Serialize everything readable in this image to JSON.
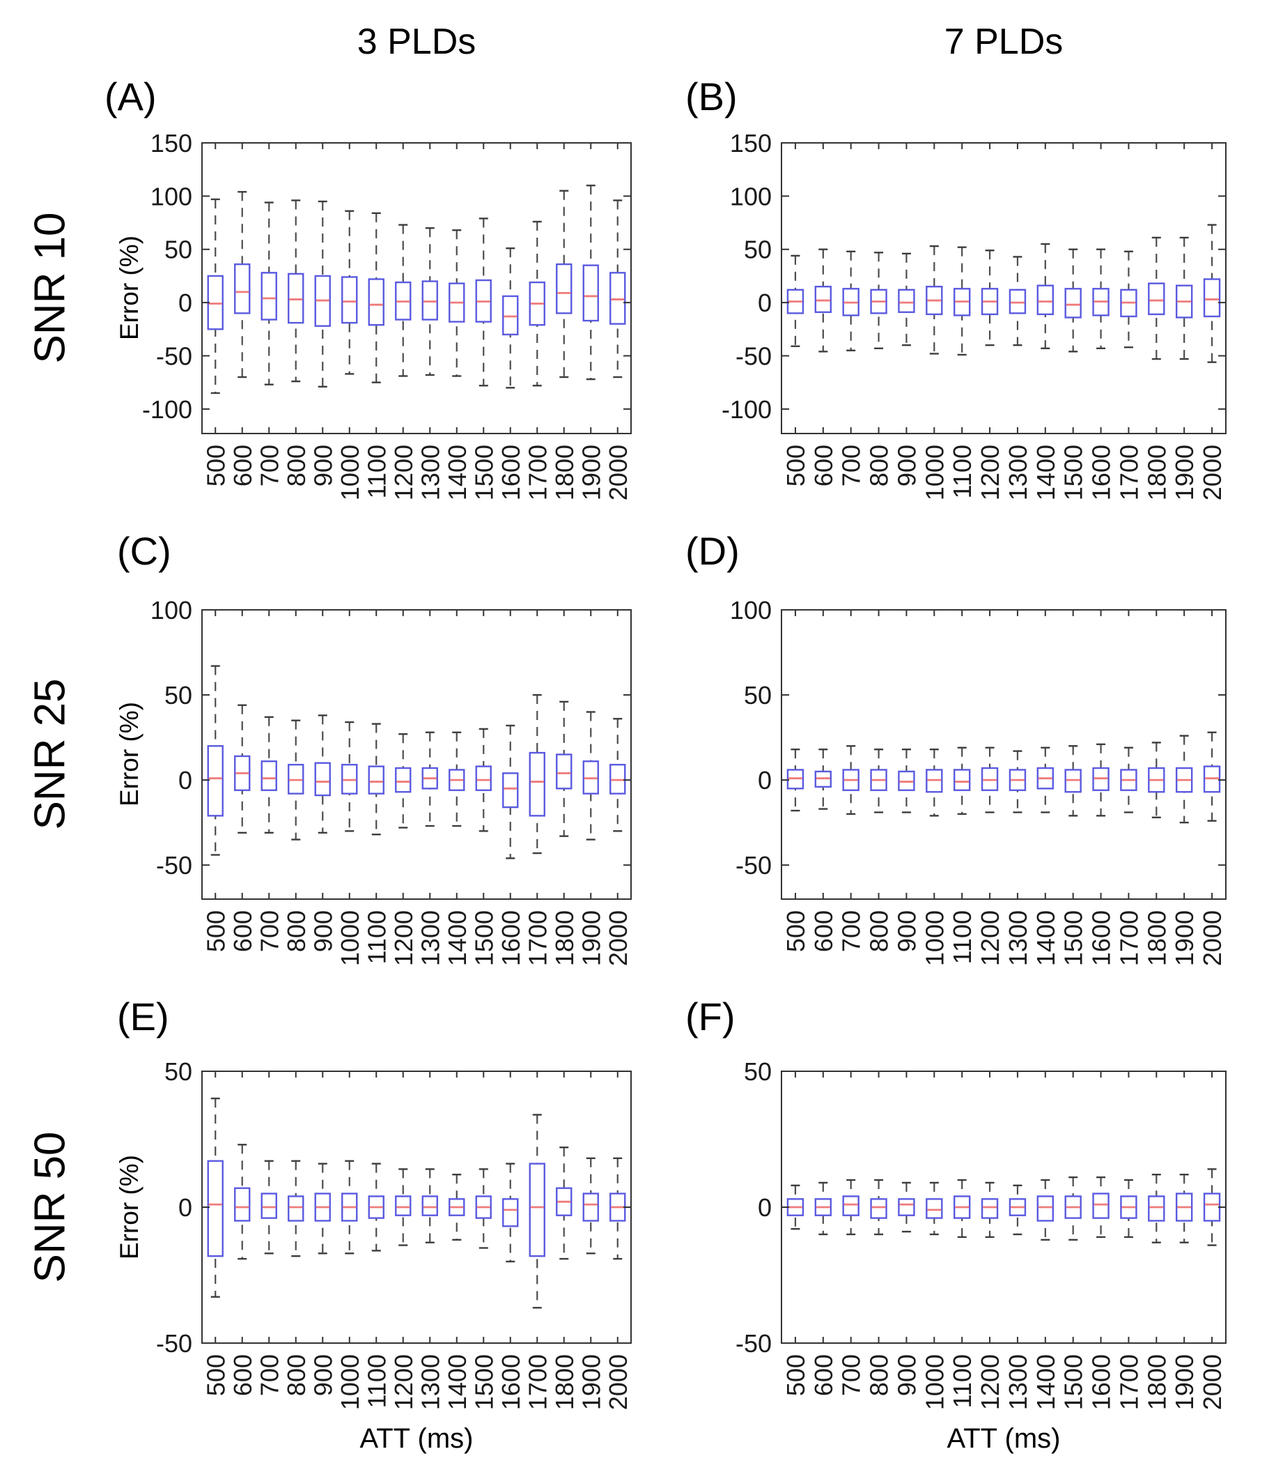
{
  "figure": {
    "column_titles": [
      "3 PLDs",
      "7 PLDs"
    ],
    "row_labels": [
      "SNR 10",
      "SNR 25",
      "SNR 50"
    ],
    "ylabel": "Error (%)",
    "xlabel": "ATT (ms)",
    "colors": {
      "box_edge": "#5a5ae0",
      "median": "#ef7b7b",
      "whisker": "#4d4d4d",
      "whisker_cap": "#3d3d3d",
      "axis": "#333333",
      "tick_text": "#1a1a1a",
      "background": "#ffffff"
    }
  },
  "chart_data": [
    {
      "panel_label": "(A)",
      "row": "SNR 10",
      "column": "3 PLDs",
      "type": "box",
      "xlabel": "ATT (ms)",
      "ylabel": "Error (%)",
      "categories": [
        "500",
        "600",
        "700",
        "800",
        "900",
        "1000",
        "1100",
        "1200",
        "1300",
        "1400",
        "1500",
        "1600",
        "1700",
        "1800",
        "1900",
        "2000"
      ],
      "yticks": [
        150,
        100,
        50,
        0,
        -50,
        -100
      ],
      "ylim": [
        -123,
        150
      ],
      "series": {
        "whisker_low": [
          -85,
          -70,
          -77,
          -74,
          -79,
          -67,
          -75,
          -69,
          -68,
          -69,
          -78,
          -80,
          -78,
          -70,
          -72,
          -70
        ],
        "q1": [
          -25,
          -10,
          -16,
          -19,
          -22,
          -19,
          -21,
          -16,
          -16,
          -18,
          -18,
          -30,
          -21,
          -10,
          -17,
          -20
        ],
        "median": [
          -1,
          10,
          4,
          3,
          2,
          1,
          -2,
          1,
          1,
          0,
          1,
          -13,
          -1,
          9,
          6,
          3
        ],
        "q3": [
          25,
          36,
          28,
          27,
          25,
          24,
          22,
          19,
          20,
          18,
          21,
          6,
          19,
          36,
          35,
          28
        ],
        "whisker_high": [
          97,
          104,
          94,
          96,
          95,
          86,
          84,
          73,
          70,
          68,
          79,
          51,
          76,
          105,
          110,
          96
        ]
      }
    },
    {
      "panel_label": "(B)",
      "row": "SNR 10",
      "column": "7 PLDs",
      "type": "box",
      "xlabel": "ATT (ms)",
      "ylabel": "Error (%)",
      "categories": [
        "500",
        "600",
        "700",
        "800",
        "900",
        "1000",
        "1100",
        "1200",
        "1300",
        "1400",
        "1500",
        "1600",
        "1700",
        "1800",
        "1900",
        "2000"
      ],
      "yticks": [
        150,
        100,
        50,
        0,
        -50,
        -100
      ],
      "ylim": [
        -123,
        150
      ],
      "series": {
        "whisker_low": [
          -41,
          -46,
          -45,
          -43,
          -40,
          -48,
          -49,
          -40,
          -40,
          -43,
          -46,
          -43,
          -42,
          -53,
          -53,
          -56
        ],
        "q1": [
          -10,
          -9,
          -12,
          -10,
          -9,
          -11,
          -12,
          -11,
          -10,
          -11,
          -14,
          -12,
          -13,
          -11,
          -14,
          -13
        ],
        "median": [
          1,
          2,
          0,
          1,
          0,
          2,
          1,
          1,
          0,
          1,
          -2,
          1,
          0,
          2,
          1,
          3
        ],
        "q3": [
          12,
          15,
          13,
          12,
          12,
          15,
          13,
          13,
          12,
          16,
          13,
          13,
          12,
          18,
          16,
          22
        ],
        "whisker_high": [
          44,
          50,
          48,
          47,
          46,
          53,
          52,
          49,
          43,
          55,
          50,
          50,
          48,
          61,
          61,
          73
        ]
      }
    },
    {
      "panel_label": "(C)",
      "row": "SNR 25",
      "column": "3 PLDs",
      "type": "box",
      "xlabel": "ATT (ms)",
      "ylabel": "Error (%)",
      "categories": [
        "500",
        "600",
        "700",
        "800",
        "900",
        "1000",
        "1100",
        "1200",
        "1300",
        "1400",
        "1500",
        "1600",
        "1700",
        "1800",
        "1900",
        "2000"
      ],
      "yticks": [
        100,
        50,
        0,
        -50
      ],
      "ylim": [
        -70,
        100
      ],
      "series": {
        "whisker_low": [
          -44,
          -31,
          -31,
          -35,
          -31,
          -30,
          -32,
          -28,
          -27,
          -27,
          -30,
          -46,
          -43,
          -33,
          -35,
          -30
        ],
        "q1": [
          -21,
          -6,
          -6,
          -8,
          -9,
          -8,
          -8,
          -7,
          -5,
          -6,
          -6,
          -16,
          -21,
          -5,
          -8,
          -8
        ],
        "median": [
          1,
          4,
          1,
          0,
          -1,
          0,
          -1,
          -1,
          1,
          0,
          0,
          -5,
          -1,
          4,
          1,
          0
        ],
        "q3": [
          20,
          14,
          11,
          9,
          10,
          9,
          8,
          7,
          7,
          6,
          8,
          4,
          16,
          15,
          11,
          9
        ],
        "whisker_high": [
          67,
          44,
          37,
          35,
          38,
          34,
          33,
          27,
          28,
          28,
          30,
          32,
          50,
          46,
          40,
          36
        ]
      }
    },
    {
      "panel_label": "(D)",
      "row": "SNR 25",
      "column": "7 PLDs",
      "type": "box",
      "xlabel": "ATT (ms)",
      "ylabel": "Error (%)",
      "categories": [
        "500",
        "600",
        "700",
        "800",
        "900",
        "1000",
        "1100",
        "1200",
        "1300",
        "1400",
        "1500",
        "1600",
        "1700",
        "1800",
        "1900",
        "2000"
      ],
      "yticks": [
        100,
        50,
        0,
        -50
      ],
      "ylim": [
        -70,
        100
      ],
      "series": {
        "whisker_low": [
          -18,
          -17,
          -20,
          -19,
          -19,
          -21,
          -20,
          -19,
          -19,
          -19,
          -21,
          -21,
          -19,
          -22,
          -25,
          -24
        ],
        "q1": [
          -5,
          -4,
          -6,
          -6,
          -6,
          -7,
          -6,
          -6,
          -6,
          -5,
          -7,
          -6,
          -6,
          -7,
          -7,
          -7
        ],
        "median": [
          1,
          1,
          0,
          0,
          -1,
          0,
          -1,
          0,
          0,
          1,
          0,
          1,
          0,
          0,
          0,
          1
        ],
        "q3": [
          6,
          5,
          6,
          6,
          5,
          6,
          6,
          7,
          6,
          7,
          6,
          7,
          6,
          7,
          7,
          8
        ],
        "whisker_high": [
          18,
          18,
          20,
          18,
          18,
          18,
          19,
          19,
          17,
          19,
          20,
          21,
          19,
          22,
          26,
          28
        ]
      }
    },
    {
      "panel_label": "(E)",
      "row": "SNR 50",
      "column": "3 PLDs",
      "type": "box",
      "xlabel": "ATT (ms)",
      "ylabel": "Error (%)",
      "categories": [
        "500",
        "600",
        "700",
        "800",
        "900",
        "1000",
        "1100",
        "1200",
        "1300",
        "1400",
        "1500",
        "1600",
        "1700",
        "1800",
        "1900",
        "2000"
      ],
      "yticks": [
        50,
        0,
        -50
      ],
      "ylim": [
        -50,
        50
      ],
      "series": {
        "whisker_low": [
          -33,
          -19,
          -17,
          -18,
          -17,
          -17,
          -16,
          -14,
          -13,
          -12,
          -15,
          -20,
          -37,
          -19,
          -17,
          -19
        ],
        "q1": [
          -18,
          -5,
          -4,
          -5,
          -5,
          -5,
          -4,
          -3,
          -3,
          -3,
          -4,
          -7,
          -18,
          -3,
          -5,
          -5
        ],
        "median": [
          1,
          0,
          0,
          0,
          0,
          0,
          0,
          0,
          0,
          0,
          0,
          -1,
          0,
          2,
          1,
          0
        ],
        "q3": [
          17,
          7,
          5,
          4,
          5,
          5,
          4,
          4,
          4,
          3,
          4,
          3,
          16,
          7,
          5,
          5
        ],
        "whisker_high": [
          40,
          23,
          17,
          17,
          16,
          17,
          16,
          14,
          14,
          12,
          14,
          16,
          34,
          22,
          18,
          18
        ]
      }
    },
    {
      "panel_label": "(F)",
      "row": "SNR 50",
      "column": "7 PLDs",
      "type": "box",
      "xlabel": "ATT (ms)",
      "ylabel": "Error (%)",
      "categories": [
        "500",
        "600",
        "700",
        "800",
        "900",
        "1000",
        "1100",
        "1200",
        "1300",
        "1400",
        "1500",
        "1600",
        "1700",
        "1800",
        "1900",
        "2000"
      ],
      "yticks": [
        50,
        0,
        -50
      ],
      "ylim": [
        -50,
        50
      ],
      "series": {
        "whisker_low": [
          -8,
          -10,
          -10,
          -10,
          -9,
          -10,
          -11,
          -11,
          -10,
          -12,
          -12,
          -11,
          -11,
          -13,
          -13,
          -14
        ],
        "q1": [
          -3,
          -3,
          -3,
          -4,
          -3,
          -4,
          -4,
          -4,
          -3,
          -5,
          -4,
          -4,
          -4,
          -5,
          -5,
          -5
        ],
        "median": [
          0,
          0,
          1,
          0,
          1,
          -1,
          0,
          0,
          0,
          0,
          0,
          1,
          0,
          0,
          0,
          1
        ],
        "q3": [
          3,
          3,
          4,
          3,
          3,
          3,
          4,
          3,
          3,
          4,
          4,
          5,
          4,
          4,
          5,
          5
        ],
        "whisker_high": [
          8,
          9,
          10,
          10,
          9,
          9,
          10,
          9,
          8,
          10,
          11,
          11,
          10,
          12,
          12,
          14
        ]
      }
    }
  ]
}
